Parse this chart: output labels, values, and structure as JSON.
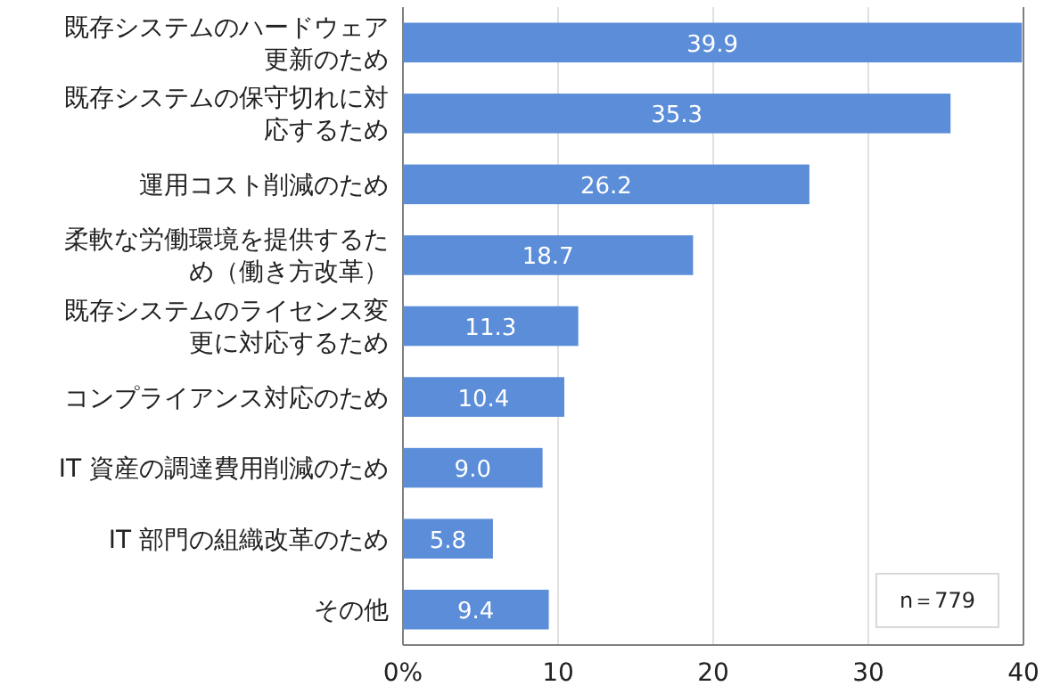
{
  "chart_data": {
    "type": "bar",
    "orientation": "horizontal",
    "categories": [
      "既存システムのハードウェア更新のため",
      "既存システムの保守切れに対応するため",
      "運用コスト削減のため",
      "柔軟な労働環境を提供するため（働き方改革）",
      "既存システムのライセンス変更に対応するため",
      "コンプライアンス対応のため",
      "IT 資産の調達費用削減のため",
      "IT 部門の組織改革のため",
      "その他"
    ],
    "values": [
      39.9,
      35.3,
      26.2,
      18.7,
      11.3,
      10.4,
      9.0,
      5.8,
      9.4
    ],
    "color": "#5b8dd9",
    "xlim": [
      0,
      40
    ],
    "xticks": [
      {
        "value": 0,
        "label": "0%"
      },
      10,
      20,
      30,
      40
    ],
    "grid": "x",
    "value_labels": [
      "39.9",
      "35.3",
      "26.2",
      "18.7",
      "11.3",
      "10.4",
      "9.0",
      "5.8",
      "9.4"
    ],
    "annotations": [
      "n＝779"
    ]
  }
}
